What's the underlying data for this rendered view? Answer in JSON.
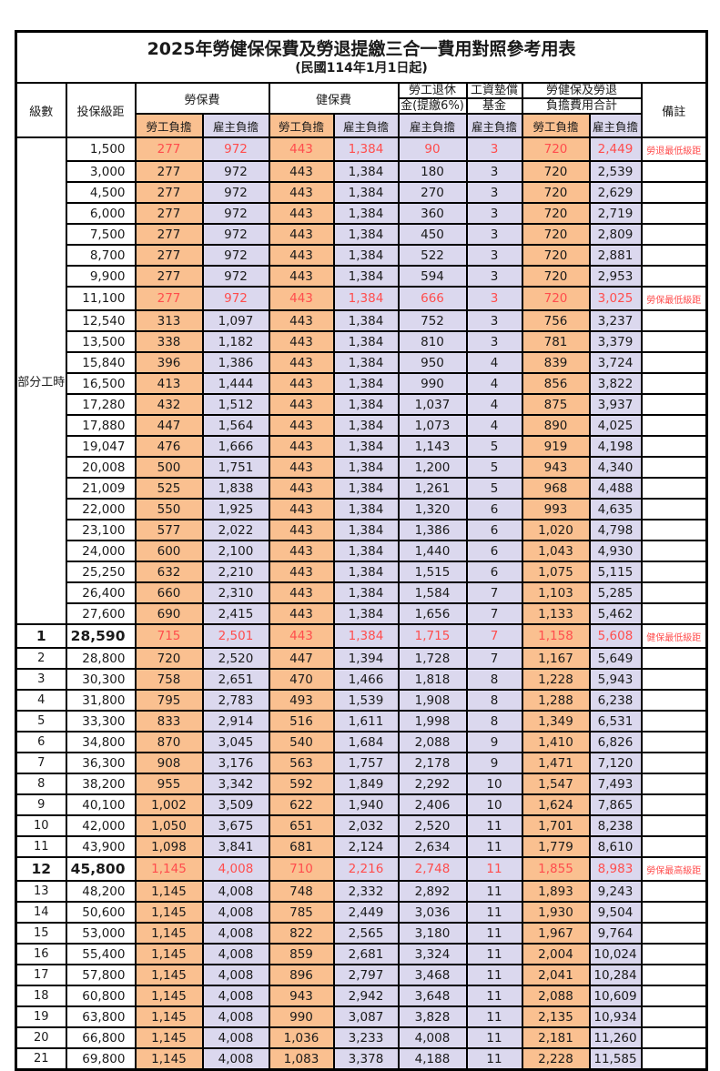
{
  "title": "2025年勞健保保費及勞退提繳三合一費用對照參考用表",
  "subtitle": "(民國114年1月1日起)",
  "colors": {
    "employee_column_bg": "#FAC090",
    "employer_column_bg": "#DBD8EE",
    "highlight_text": "#FF4D4D",
    "border": "#000000"
  },
  "header": {
    "level": "級數",
    "bracket": "投保級距",
    "labor_insurance": "勞保費",
    "health_insurance": "健保費",
    "pension_line1": "勞工退休",
    "pension_line2": "金(提繳6%)",
    "wage_fund_line1": "工資墊償",
    "wage_fund_line2": "基金",
    "total_line1": "勞健保及勞退",
    "total_line2": "負擔費用合計",
    "employee_burden": "勞工負擔",
    "employer_burden": "雇主負擔",
    "remark": "備註"
  },
  "part_time_label": "部分工時",
  "part_time_row_count": 23,
  "rows": [
    {
      "level": "",
      "bracket": "1,500",
      "values": [
        "277",
        "972",
        "443",
        "1,384",
        "90",
        "3",
        "720",
        "2,449"
      ],
      "remark": "勞退最低級距",
      "highlight": true,
      "big": false
    },
    {
      "level": "",
      "bracket": "3,000",
      "values": [
        "277",
        "972",
        "443",
        "1,384",
        "180",
        "3",
        "720",
        "2,539"
      ],
      "remark": "",
      "highlight": false,
      "big": false
    },
    {
      "level": "",
      "bracket": "4,500",
      "values": [
        "277",
        "972",
        "443",
        "1,384",
        "270",
        "3",
        "720",
        "2,629"
      ],
      "remark": "",
      "highlight": false,
      "big": false
    },
    {
      "level": "",
      "bracket": "6,000",
      "values": [
        "277",
        "972",
        "443",
        "1,384",
        "360",
        "3",
        "720",
        "2,719"
      ],
      "remark": "",
      "highlight": false,
      "big": false
    },
    {
      "level": "",
      "bracket": "7,500",
      "values": [
        "277",
        "972",
        "443",
        "1,384",
        "450",
        "3",
        "720",
        "2,809"
      ],
      "remark": "",
      "highlight": false,
      "big": false
    },
    {
      "level": "",
      "bracket": "8,700",
      "values": [
        "277",
        "972",
        "443",
        "1,384",
        "522",
        "3",
        "720",
        "2,881"
      ],
      "remark": "",
      "highlight": false,
      "big": false
    },
    {
      "level": "",
      "bracket": "9,900",
      "values": [
        "277",
        "972",
        "443",
        "1,384",
        "594",
        "3",
        "720",
        "2,953"
      ],
      "remark": "",
      "highlight": false,
      "big": false
    },
    {
      "level": "",
      "bracket": "11,100",
      "values": [
        "277",
        "972",
        "443",
        "1,384",
        "666",
        "3",
        "720",
        "3,025"
      ],
      "remark": "勞保最低級距",
      "highlight": true,
      "big": false
    },
    {
      "level": "",
      "bracket": "12,540",
      "values": [
        "313",
        "1,097",
        "443",
        "1,384",
        "752",
        "3",
        "756",
        "3,237"
      ],
      "remark": "",
      "highlight": false,
      "big": false
    },
    {
      "level": "",
      "bracket": "13,500",
      "values": [
        "338",
        "1,182",
        "443",
        "1,384",
        "810",
        "3",
        "781",
        "3,379"
      ],
      "remark": "",
      "highlight": false,
      "big": false
    },
    {
      "level": "",
      "bracket": "15,840",
      "values": [
        "396",
        "1,386",
        "443",
        "1,384",
        "950",
        "4",
        "839",
        "3,724"
      ],
      "remark": "",
      "highlight": false,
      "big": false
    },
    {
      "level": "",
      "bracket": "16,500",
      "values": [
        "413",
        "1,444",
        "443",
        "1,384",
        "990",
        "4",
        "856",
        "3,822"
      ],
      "remark": "",
      "highlight": false,
      "big": false
    },
    {
      "level": "",
      "bracket": "17,280",
      "values": [
        "432",
        "1,512",
        "443",
        "1,384",
        "1,037",
        "4",
        "875",
        "3,937"
      ],
      "remark": "",
      "highlight": false,
      "big": false
    },
    {
      "level": "",
      "bracket": "17,880",
      "values": [
        "447",
        "1,564",
        "443",
        "1,384",
        "1,073",
        "4",
        "890",
        "4,025"
      ],
      "remark": "",
      "highlight": false,
      "big": false
    },
    {
      "level": "",
      "bracket": "19,047",
      "values": [
        "476",
        "1,666",
        "443",
        "1,384",
        "1,143",
        "5",
        "919",
        "4,198"
      ],
      "remark": "",
      "highlight": false,
      "big": false
    },
    {
      "level": "",
      "bracket": "20,008",
      "values": [
        "500",
        "1,751",
        "443",
        "1,384",
        "1,200",
        "5",
        "943",
        "4,340"
      ],
      "remark": "",
      "highlight": false,
      "big": false
    },
    {
      "level": "",
      "bracket": "21,009",
      "values": [
        "525",
        "1,838",
        "443",
        "1,384",
        "1,261",
        "5",
        "968",
        "4,488"
      ],
      "remark": "",
      "highlight": false,
      "big": false
    },
    {
      "level": "",
      "bracket": "22,000",
      "values": [
        "550",
        "1,925",
        "443",
        "1,384",
        "1,320",
        "6",
        "993",
        "4,635"
      ],
      "remark": "",
      "highlight": false,
      "big": false
    },
    {
      "level": "",
      "bracket": "23,100",
      "values": [
        "577",
        "2,022",
        "443",
        "1,384",
        "1,386",
        "6",
        "1,020",
        "4,798"
      ],
      "remark": "",
      "highlight": false,
      "big": false
    },
    {
      "level": "",
      "bracket": "24,000",
      "values": [
        "600",
        "2,100",
        "443",
        "1,384",
        "1,440",
        "6",
        "1,043",
        "4,930"
      ],
      "remark": "",
      "highlight": false,
      "big": false
    },
    {
      "level": "",
      "bracket": "25,250",
      "values": [
        "632",
        "2,210",
        "443",
        "1,384",
        "1,515",
        "6",
        "1,075",
        "5,115"
      ],
      "remark": "",
      "highlight": false,
      "big": false
    },
    {
      "level": "",
      "bracket": "26,400",
      "values": [
        "660",
        "2,310",
        "443",
        "1,384",
        "1,584",
        "7",
        "1,103",
        "5,285"
      ],
      "remark": "",
      "highlight": false,
      "big": false
    },
    {
      "level": "",
      "bracket": "27,600",
      "values": [
        "690",
        "2,415",
        "443",
        "1,384",
        "1,656",
        "7",
        "1,133",
        "5,462"
      ],
      "remark": "",
      "highlight": false,
      "big": false
    },
    {
      "level": "1",
      "bracket": "28,590",
      "values": [
        "715",
        "2,501",
        "443",
        "1,384",
        "1,715",
        "7",
        "1,158",
        "5,608"
      ],
      "remark": "健保最低級距",
      "highlight": true,
      "big": true
    },
    {
      "level": "2",
      "bracket": "28,800",
      "values": [
        "720",
        "2,520",
        "447",
        "1,394",
        "1,728",
        "7",
        "1,167",
        "5,649"
      ],
      "remark": "",
      "highlight": false,
      "big": false
    },
    {
      "level": "3",
      "bracket": "30,300",
      "values": [
        "758",
        "2,651",
        "470",
        "1,466",
        "1,818",
        "8",
        "1,228",
        "5,943"
      ],
      "remark": "",
      "highlight": false,
      "big": false
    },
    {
      "level": "4",
      "bracket": "31,800",
      "values": [
        "795",
        "2,783",
        "493",
        "1,539",
        "1,908",
        "8",
        "1,288",
        "6,238"
      ],
      "remark": "",
      "highlight": false,
      "big": false
    },
    {
      "level": "5",
      "bracket": "33,300",
      "values": [
        "833",
        "2,914",
        "516",
        "1,611",
        "1,998",
        "8",
        "1,349",
        "6,531"
      ],
      "remark": "",
      "highlight": false,
      "big": false
    },
    {
      "level": "6",
      "bracket": "34,800",
      "values": [
        "870",
        "3,045",
        "540",
        "1,684",
        "2,088",
        "9",
        "1,410",
        "6,826"
      ],
      "remark": "",
      "highlight": false,
      "big": false
    },
    {
      "level": "7",
      "bracket": "36,300",
      "values": [
        "908",
        "3,176",
        "563",
        "1,757",
        "2,178",
        "9",
        "1,471",
        "7,120"
      ],
      "remark": "",
      "highlight": false,
      "big": false
    },
    {
      "level": "8",
      "bracket": "38,200",
      "values": [
        "955",
        "3,342",
        "592",
        "1,849",
        "2,292",
        "10",
        "1,547",
        "7,493"
      ],
      "remark": "",
      "highlight": false,
      "big": false
    },
    {
      "level": "9",
      "bracket": "40,100",
      "values": [
        "1,002",
        "3,509",
        "622",
        "1,940",
        "2,406",
        "10",
        "1,624",
        "7,865"
      ],
      "remark": "",
      "highlight": false,
      "big": false
    },
    {
      "level": "10",
      "bracket": "42,000",
      "values": [
        "1,050",
        "3,675",
        "651",
        "2,032",
        "2,520",
        "11",
        "1,701",
        "8,238"
      ],
      "remark": "",
      "highlight": false,
      "big": false
    },
    {
      "level": "11",
      "bracket": "43,900",
      "values": [
        "1,098",
        "3,841",
        "681",
        "2,124",
        "2,634",
        "11",
        "1,779",
        "8,610"
      ],
      "remark": "",
      "highlight": false,
      "big": false
    },
    {
      "level": "12",
      "bracket": "45,800",
      "values": [
        "1,145",
        "4,008",
        "710",
        "2,216",
        "2,748",
        "11",
        "1,855",
        "8,983"
      ],
      "remark": "勞保最高級距",
      "highlight": true,
      "big": true
    },
    {
      "level": "13",
      "bracket": "48,200",
      "values": [
        "1,145",
        "4,008",
        "748",
        "2,332",
        "2,892",
        "11",
        "1,893",
        "9,243"
      ],
      "remark": "",
      "highlight": false,
      "big": false
    },
    {
      "level": "14",
      "bracket": "50,600",
      "values": [
        "1,145",
        "4,008",
        "785",
        "2,449",
        "3,036",
        "11",
        "1,930",
        "9,504"
      ],
      "remark": "",
      "highlight": false,
      "big": false
    },
    {
      "level": "15",
      "bracket": "53,000",
      "values": [
        "1,145",
        "4,008",
        "822",
        "2,565",
        "3,180",
        "11",
        "1,967",
        "9,764"
      ],
      "remark": "",
      "highlight": false,
      "big": false
    },
    {
      "level": "16",
      "bracket": "55,400",
      "values": [
        "1,145",
        "4,008",
        "859",
        "2,681",
        "3,324",
        "11",
        "2,004",
        "10,024"
      ],
      "remark": "",
      "highlight": false,
      "big": false
    },
    {
      "level": "17",
      "bracket": "57,800",
      "values": [
        "1,145",
        "4,008",
        "896",
        "2,797",
        "3,468",
        "11",
        "2,041",
        "10,284"
      ],
      "remark": "",
      "highlight": false,
      "big": false
    },
    {
      "level": "18",
      "bracket": "60,800",
      "values": [
        "1,145",
        "4,008",
        "943",
        "2,942",
        "3,648",
        "11",
        "2,088",
        "10,609"
      ],
      "remark": "",
      "highlight": false,
      "big": false
    },
    {
      "level": "19",
      "bracket": "63,800",
      "values": [
        "1,145",
        "4,008",
        "990",
        "3,087",
        "3,828",
        "11",
        "2,135",
        "10,934"
      ],
      "remark": "",
      "highlight": false,
      "big": false
    },
    {
      "level": "20",
      "bracket": "66,800",
      "values": [
        "1,145",
        "4,008",
        "1,036",
        "3,233",
        "4,008",
        "11",
        "2,181",
        "11,260"
      ],
      "remark": "",
      "highlight": false,
      "big": false
    },
    {
      "level": "21",
      "bracket": "69,800",
      "values": [
        "1,145",
        "4,008",
        "1,083",
        "3,378",
        "4,188",
        "11",
        "2,228",
        "11,585"
      ],
      "remark": "",
      "highlight": false,
      "big": false
    }
  ]
}
